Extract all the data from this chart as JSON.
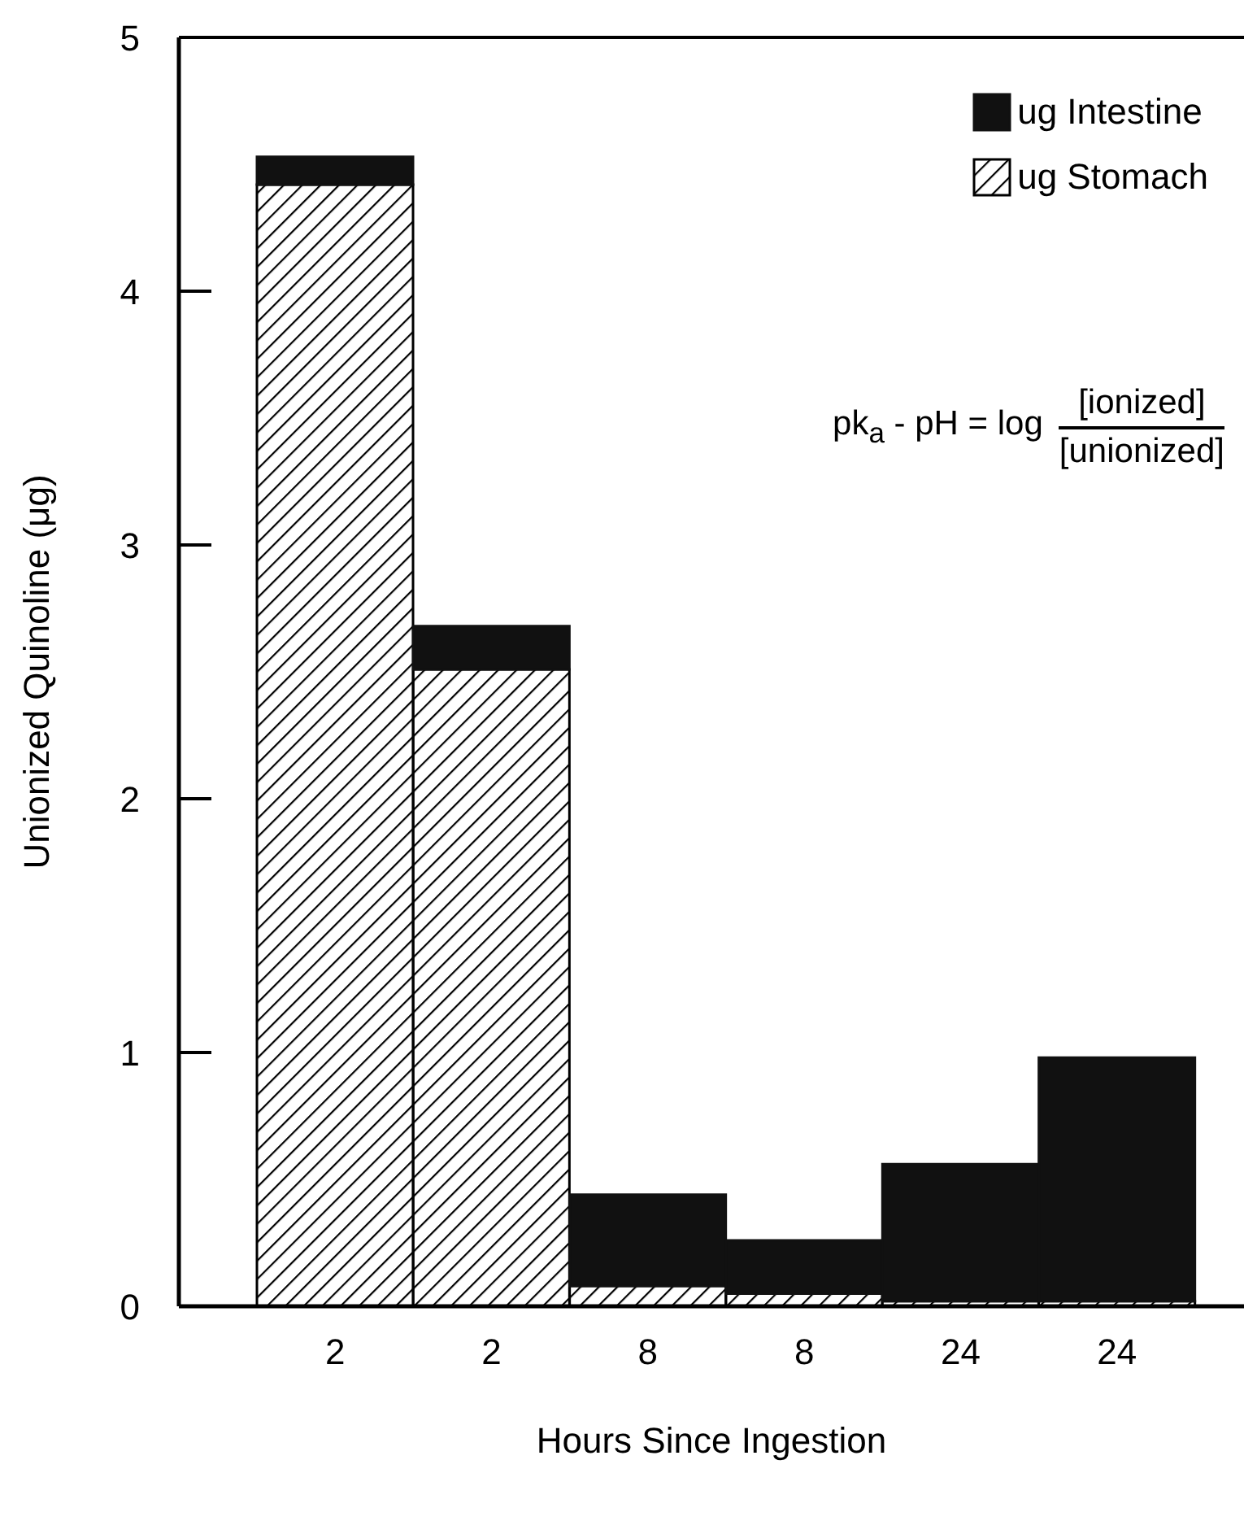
{
  "chart_data": {
    "type": "bar",
    "stacked": true,
    "xlabel": "Hours Since Ingestion",
    "ylabel": "Unionized Quinoline (μg)",
    "categories": [
      "2",
      "2",
      "8",
      "8",
      "24",
      "24"
    ],
    "series": [
      {
        "name": "ug Stomach",
        "color": "#000000",
        "values": [
          4.42,
          2.51,
          0.08,
          0.05,
          0.02,
          0.02
        ]
      },
      {
        "name": "ug Intestine",
        "color": "#111111",
        "values": [
          0.11,
          0.17,
          0.36,
          0.21,
          0.54,
          0.96
        ]
      }
    ],
    "ylim": [
      0,
      5
    ],
    "yticks": [
      0,
      1,
      2,
      3,
      4,
      5
    ],
    "legend": "top right",
    "grid": false,
    "annotations": [
      "pk$_{a}$ - pH = log",
      "[ionized]",
      "[unionized]"
    ]
  }
}
